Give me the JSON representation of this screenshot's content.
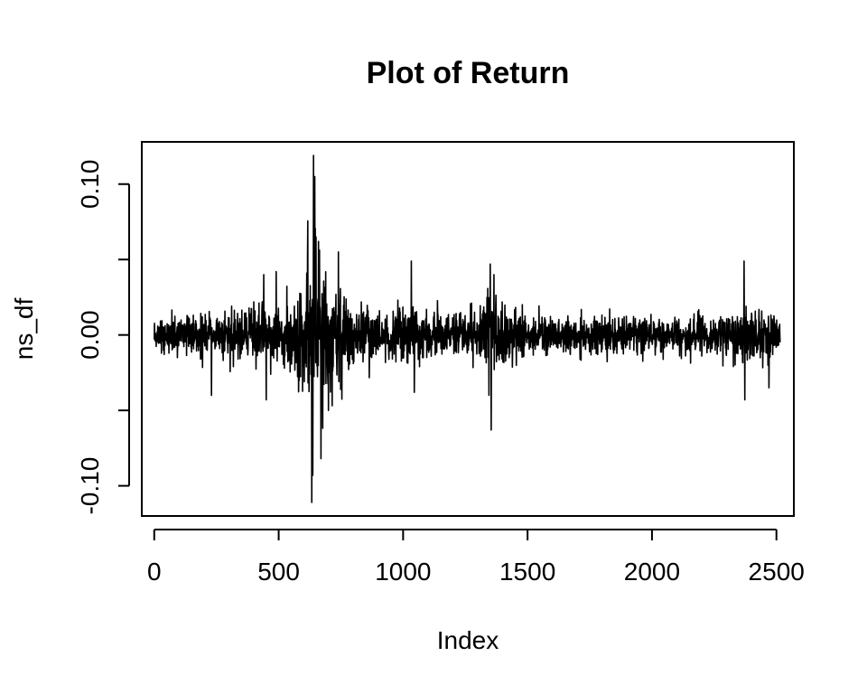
{
  "chart_data": {
    "type": "line",
    "title": "Plot of Return",
    "xlabel": "Index",
    "ylabel": "ns_df",
    "xlim": [
      -50,
      2570
    ],
    "ylim": [
      -0.12,
      0.128
    ],
    "x_ticks": [
      0,
      500,
      1000,
      1500,
      2000,
      2500
    ],
    "x_tick_labels": [
      "0",
      "500",
      "1000",
      "1500",
      "2000",
      "2500"
    ],
    "y_ticks": [
      -0.1,
      -0.05,
      0.0,
      0.05,
      0.1
    ],
    "y_tick_labels": [
      "-0.10",
      "",
      "0.00",
      "",
      "0.10"
    ],
    "grid": false,
    "legend": "none",
    "n_points": 2516,
    "series": [
      {
        "color": "#000000",
        "volatility_profile": [
          {
            "x": 0,
            "amp": 0.011
          },
          {
            "x": 150,
            "amp": 0.011
          },
          {
            "x": 300,
            "amp": 0.012
          },
          {
            "x": 420,
            "amp": 0.018
          },
          {
            "x": 520,
            "amp": 0.02
          },
          {
            "x": 600,
            "amp": 0.03
          },
          {
            "x": 640,
            "amp": 0.055
          },
          {
            "x": 680,
            "amp": 0.045
          },
          {
            "x": 740,
            "amp": 0.03
          },
          {
            "x": 820,
            "amp": 0.017
          },
          {
            "x": 950,
            "amp": 0.012
          },
          {
            "x": 1040,
            "amp": 0.02
          },
          {
            "x": 1120,
            "amp": 0.013
          },
          {
            "x": 1300,
            "amp": 0.015
          },
          {
            "x": 1350,
            "amp": 0.028
          },
          {
            "x": 1420,
            "amp": 0.018
          },
          {
            "x": 1500,
            "amp": 0.012
          },
          {
            "x": 2000,
            "amp": 0.01
          },
          {
            "x": 2300,
            "amp": 0.011
          },
          {
            "x": 2370,
            "amp": 0.018
          },
          {
            "x": 2460,
            "amp": 0.016
          },
          {
            "x": 2516,
            "amp": 0.012
          }
        ],
        "extremes": [
          {
            "x": 640,
            "y": 0.119
          },
          {
            "x": 633,
            "y": -0.111
          },
          {
            "x": 645,
            "y": 0.105
          },
          {
            "x": 637,
            "y": -0.093
          },
          {
            "x": 660,
            "y": 0.062
          },
          {
            "x": 670,
            "y": -0.082
          },
          {
            "x": 650,
            "y": 0.065
          },
          {
            "x": 700,
            "y": -0.05
          },
          {
            "x": 740,
            "y": 0.055
          },
          {
            "x": 1033,
            "y": 0.049
          },
          {
            "x": 1045,
            "y": -0.038
          },
          {
            "x": 1350,
            "y": 0.047
          },
          {
            "x": 1354,
            "y": -0.063
          },
          {
            "x": 1345,
            "y": -0.04
          },
          {
            "x": 1365,
            "y": 0.04
          },
          {
            "x": 2370,
            "y": 0.049
          },
          {
            "x": 2373,
            "y": -0.043
          },
          {
            "x": 2470,
            "y": -0.035
          },
          {
            "x": 230,
            "y": -0.04
          },
          {
            "x": 450,
            "y": -0.043
          },
          {
            "x": 440,
            "y": 0.04
          },
          {
            "x": 490,
            "y": 0.042
          }
        ]
      }
    ]
  }
}
